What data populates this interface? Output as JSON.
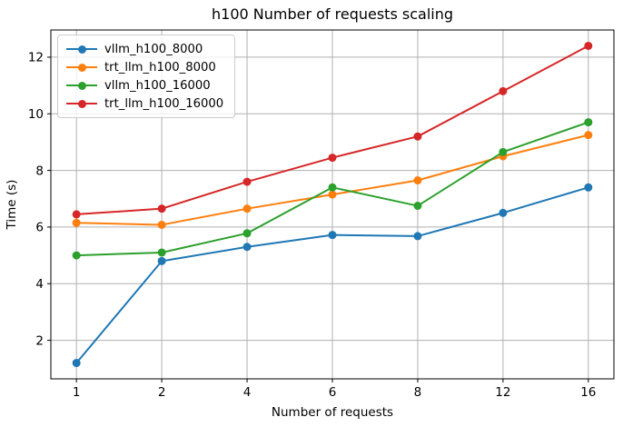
{
  "chart_data": {
    "type": "line",
    "title": "h100 Number of requests scaling",
    "xlabel": "Number of requests",
    "ylabel": "Time (s)",
    "categories": [
      "1",
      "2",
      "4",
      "6",
      "8",
      "12",
      "16"
    ],
    "y_ticks": [
      2,
      4,
      6,
      8,
      10,
      12
    ],
    "ylim": [
      0.64,
      12.96
    ],
    "grid": true,
    "grid_color": "#b0b0b0",
    "spine_color": "#000000",
    "legend_position": "upper left",
    "series": [
      {
        "name": "vllm_h100_8000",
        "color": "#1f77b4",
        "values": [
          1.2,
          4.8,
          5.3,
          5.72,
          5.68,
          6.5,
          7.4
        ]
      },
      {
        "name": "trt_llm_h100_8000",
        "color": "#ff7f0e",
        "values": [
          6.15,
          6.08,
          6.65,
          7.15,
          7.65,
          8.5,
          9.25
        ]
      },
      {
        "name": "vllm_h100_16000",
        "color": "#2ca02c",
        "values": [
          5.0,
          5.1,
          5.78,
          7.4,
          6.75,
          8.65,
          9.7
        ]
      },
      {
        "name": "trt_llm_h100_16000",
        "color": "#d62728",
        "values": [
          6.45,
          6.65,
          7.6,
          8.45,
          9.2,
          10.8,
          12.4
        ]
      }
    ]
  }
}
